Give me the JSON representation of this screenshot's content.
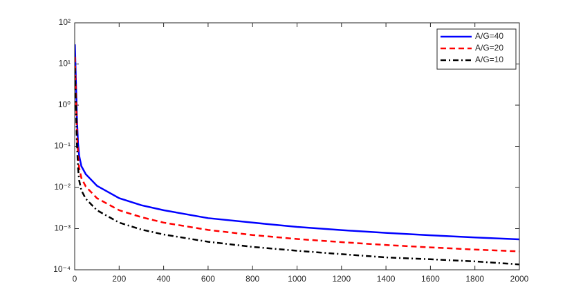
{
  "chart_data": {
    "type": "line",
    "x": [
      1,
      5,
      10,
      15,
      20,
      30,
      50,
      100,
      200,
      300,
      400,
      600,
      800,
      1000,
      1200,
      1400,
      1600,
      1800,
      2000
    ],
    "series": [
      {
        "name": "A/G=40",
        "color": "#0000ff",
        "linestyle": "solid",
        "values": [
          30,
          5,
          0.5,
          0.12,
          0.06,
          0.033,
          0.021,
          0.011,
          0.0055,
          0.0037,
          0.0028,
          0.0018,
          0.0014,
          0.0011,
          0.00092,
          0.00079,
          0.00069,
          0.00061,
          0.00055
        ]
      },
      {
        "name": "A/G=20",
        "color": "#ff0000",
        "linestyle": "dashed",
        "values": [
          15,
          2.5,
          0.25,
          0.06,
          0.03,
          0.017,
          0.0105,
          0.0055,
          0.0028,
          0.0019,
          0.0014,
          0.00093,
          0.0007,
          0.00056,
          0.00047,
          0.0004,
          0.00035,
          0.00031,
          0.00028
        ]
      },
      {
        "name": "A/G=10",
        "color": "#000000",
        "linestyle": "dashdot",
        "values": [
          8,
          1.2,
          0.12,
          0.03,
          0.015,
          0.0085,
          0.0053,
          0.0028,
          0.0014,
          0.00095,
          0.00072,
          0.00048,
          0.00036,
          0.00029,
          0.00024,
          0.0002,
          0.00018,
          0.00016,
          0.000135
        ]
      }
    ],
    "xlim": [
      0,
      2000
    ],
    "xticks": [
      0,
      200,
      400,
      600,
      800,
      1000,
      1200,
      1400,
      1600,
      1800,
      2000
    ],
    "ylim": [
      0.0001,
      100
    ],
    "yscale": "log",
    "yticks": [
      {
        "value": 0.0001,
        "label": "10⁻⁴"
      },
      {
        "value": 0.001,
        "label": "10⁻³"
      },
      {
        "value": 0.01,
        "label": "10⁻²"
      },
      {
        "value": 0.1,
        "label": "10⁻¹"
      },
      {
        "value": 1,
        "label": "10⁰"
      },
      {
        "value": 10,
        "label": "10¹"
      },
      {
        "value": 100,
        "label": "10²"
      }
    ],
    "legend": "upper right"
  }
}
